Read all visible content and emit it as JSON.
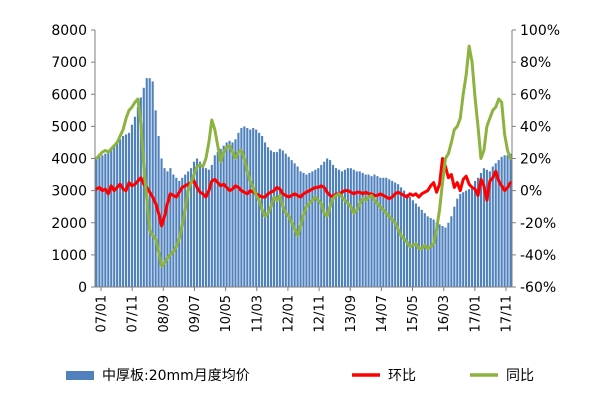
{
  "chart_data": {
    "type": "bar+line",
    "title": "",
    "x_tick_labels": [
      "07/01",
      "07/11",
      "08/09",
      "09/07",
      "10/05",
      "11/03",
      "12/01",
      "12/11",
      "13/09",
      "14/07",
      "15/05",
      "16/03",
      "17/01",
      "17/11"
    ],
    "left_axis": {
      "ylim": [
        0,
        8000
      ],
      "ticks": [
        "0",
        "1000",
        "2000",
        "3000",
        "4000",
        "5000",
        "6000",
        "7000",
        "8000"
      ]
    },
    "right_axis": {
      "ylim": [
        -60,
        100
      ],
      "ticks": [
        "-60%",
        "-40%",
        "-20%",
        "0%",
        "20%",
        "40%",
        "60%",
        "80%",
        "100%"
      ]
    },
    "grid": false,
    "legend_position": "bottom",
    "series": [
      {
        "name": "中厚板:20mm月度均价",
        "type": "bar",
        "axis": "left",
        "color": "#4f81bd",
        "values": [
          4000,
          4050,
          4100,
          4150,
          4200,
          4300,
          4400,
          4500,
          4600,
          4700,
          4750,
          4800,
          5050,
          5300,
          5600,
          5900,
          6200,
          6500,
          6500,
          6400,
          5500,
          4700,
          4000,
          3700,
          3600,
          3700,
          3500,
          3400,
          3300,
          3400,
          3500,
          3600,
          3700,
          3900,
          4000,
          3900,
          3800,
          3700,
          3650,
          3800,
          4100,
          4200,
          4300,
          4400,
          4500,
          4550,
          4500,
          4600,
          4800,
          4950,
          5000,
          4950,
          4900,
          4950,
          4900,
          4800,
          4700,
          4500,
          4350,
          4250,
          4200,
          4200,
          4300,
          4250,
          4150,
          4050,
          3950,
          3850,
          3750,
          3600,
          3550,
          3500,
          3550,
          3600,
          3650,
          3700,
          3800,
          3900,
          4000,
          3950,
          3800,
          3700,
          3650,
          3600,
          3650,
          3700,
          3700,
          3650,
          3600,
          3600,
          3550,
          3500,
          3500,
          3450,
          3500,
          3450,
          3400,
          3400,
          3400,
          3350,
          3300,
          3250,
          3200,
          3100,
          3000,
          2900,
          2800,
          2700,
          2600,
          2500,
          2400,
          2300,
          2200,
          2150,
          2100,
          2000,
          1950,
          1900,
          1850,
          2000,
          2200,
          2500,
          2750,
          2900,
          2950,
          3000,
          3050,
          3100,
          3300,
          3400,
          3550,
          3700,
          3650,
          3600,
          3750,
          3850,
          3950,
          4050,
          4100,
          4100,
          4150
        ]
      },
      {
        "name": "环比",
        "type": "line",
        "axis": "right",
        "color": "#ff0000",
        "values": [
          1,
          2,
          0,
          1,
          -2,
          3,
          0,
          2,
          4,
          1,
          0,
          5,
          3,
          4,
          6,
          8,
          4,
          2,
          -1,
          -4,
          -8,
          -14,
          -22,
          -16,
          -8,
          -2,
          -3,
          -4,
          -1,
          2,
          3,
          4,
          5,
          6,
          2,
          -1,
          -2,
          -4,
          0,
          6,
          7,
          5,
          3,
          4,
          2,
          0,
          1,
          3,
          2,
          0,
          -1,
          -2,
          0,
          -1,
          -2,
          -3,
          -4,
          -4,
          -2,
          -1,
          0,
          2,
          1,
          -2,
          -3,
          -4,
          -3,
          -2,
          -3,
          -4,
          -2,
          -1,
          0,
          1,
          2,
          2,
          3,
          2,
          -1,
          -3,
          -4,
          -2,
          -2,
          -1,
          0,
          0,
          -1,
          -2,
          -1,
          -1,
          -2,
          -1,
          -2,
          -2,
          -3,
          -3,
          -2,
          -3,
          -4,
          -5,
          -4,
          -2,
          -1,
          -2,
          -3,
          -4,
          -2,
          -3,
          -2,
          -4,
          -2,
          -1,
          0,
          3,
          5,
          -1,
          4,
          20,
          15,
          8,
          10,
          2,
          5,
          0,
          7,
          9,
          4,
          2,
          1,
          -3,
          7,
          3,
          -6,
          6,
          8,
          12,
          6,
          3,
          0,
          2,
          5
        ]
      },
      {
        "name": "同比",
        "type": "line",
        "axis": "right",
        "color": "#8cb33f",
        "values": [
          20,
          22,
          24,
          25,
          24,
          26,
          28,
          30,
          34,
          38,
          45,
          50,
          52,
          55,
          57,
          42,
          15,
          -5,
          -25,
          -28,
          -30,
          -38,
          -47,
          -45,
          -42,
          -40,
          -38,
          -35,
          -30,
          -22,
          -12,
          0,
          5,
          10,
          15,
          16,
          15,
          20,
          30,
          44,
          38,
          28,
          18,
          24,
          27,
          28,
          24,
          20,
          24,
          25,
          20,
          12,
          6,
          2,
          -3,
          -6,
          -12,
          -16,
          -14,
          -10,
          -4,
          -6,
          -3,
          -10,
          -14,
          -16,
          -20,
          -24,
          -28,
          -22,
          -15,
          -10,
          -8,
          -6,
          -4,
          -6,
          -8,
          -14,
          -16,
          -10,
          -5,
          -3,
          -2,
          -4,
          -6,
          -8,
          -10,
          -14,
          -12,
          -8,
          -5,
          -6,
          -4,
          -3,
          -6,
          -8,
          -10,
          -12,
          -14,
          -16,
          -18,
          -20,
          -24,
          -28,
          -30,
          -32,
          -35,
          -34,
          -33,
          -36,
          -36,
          -34,
          -36,
          -35,
          -33,
          -24,
          -12,
          5,
          20,
          23,
          30,
          38,
          40,
          45,
          60,
          72,
          90,
          80,
          58,
          40,
          20,
          25,
          40,
          45,
          50,
          52,
          57,
          55,
          35,
          25,
          20
        ]
      }
    ],
    "legend": [
      {
        "label": "中厚板:20mm月度均价",
        "color": "#4f81bd",
        "kind": "bar"
      },
      {
        "label": "环比",
        "color": "#ff0000",
        "kind": "line"
      },
      {
        "label": "同比",
        "color": "#8cb33f",
        "kind": "line"
      }
    ]
  }
}
